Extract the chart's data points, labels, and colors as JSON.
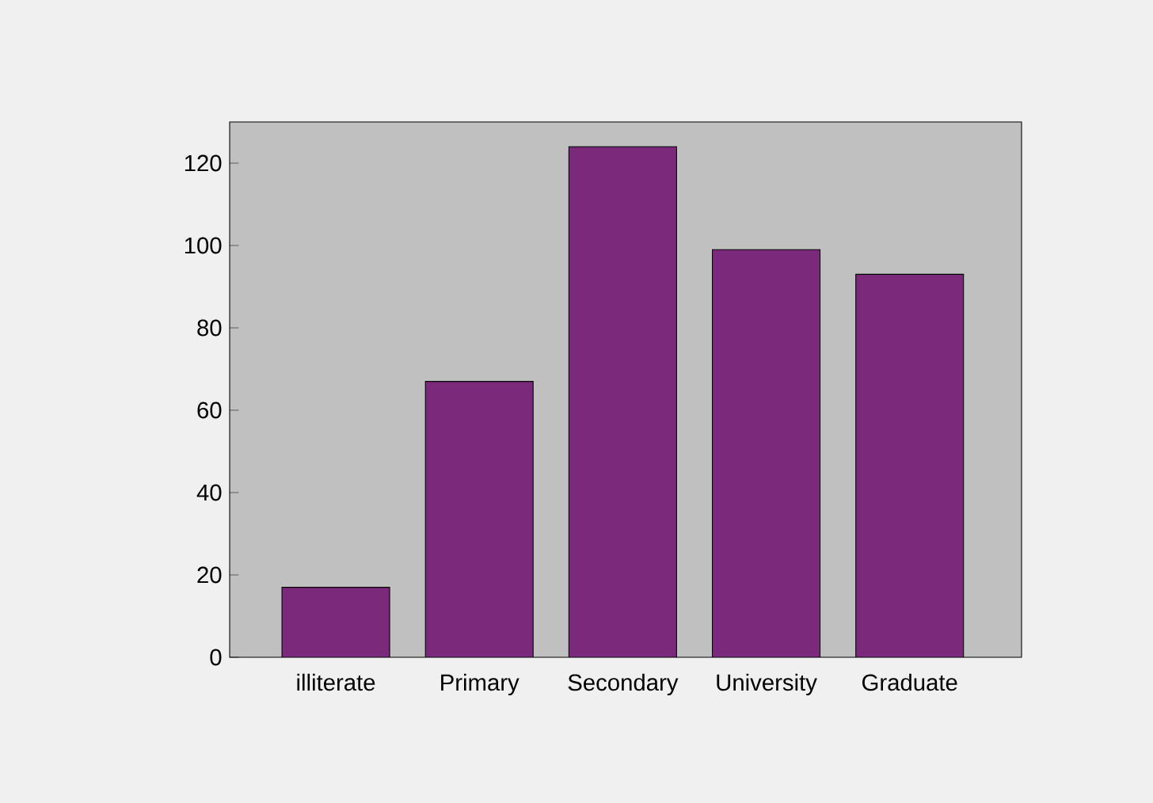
{
  "chart_data": {
    "type": "bar",
    "categories": [
      "illiterate",
      "Primary",
      "Secondary",
      "University",
      "Graduate"
    ],
    "values": [
      17,
      67,
      124,
      99,
      93
    ],
    "color": "#7b2a7b",
    "ylim": [
      0,
      130
    ],
    "yticks": [
      0,
      20,
      40,
      60,
      80,
      100,
      120
    ]
  }
}
